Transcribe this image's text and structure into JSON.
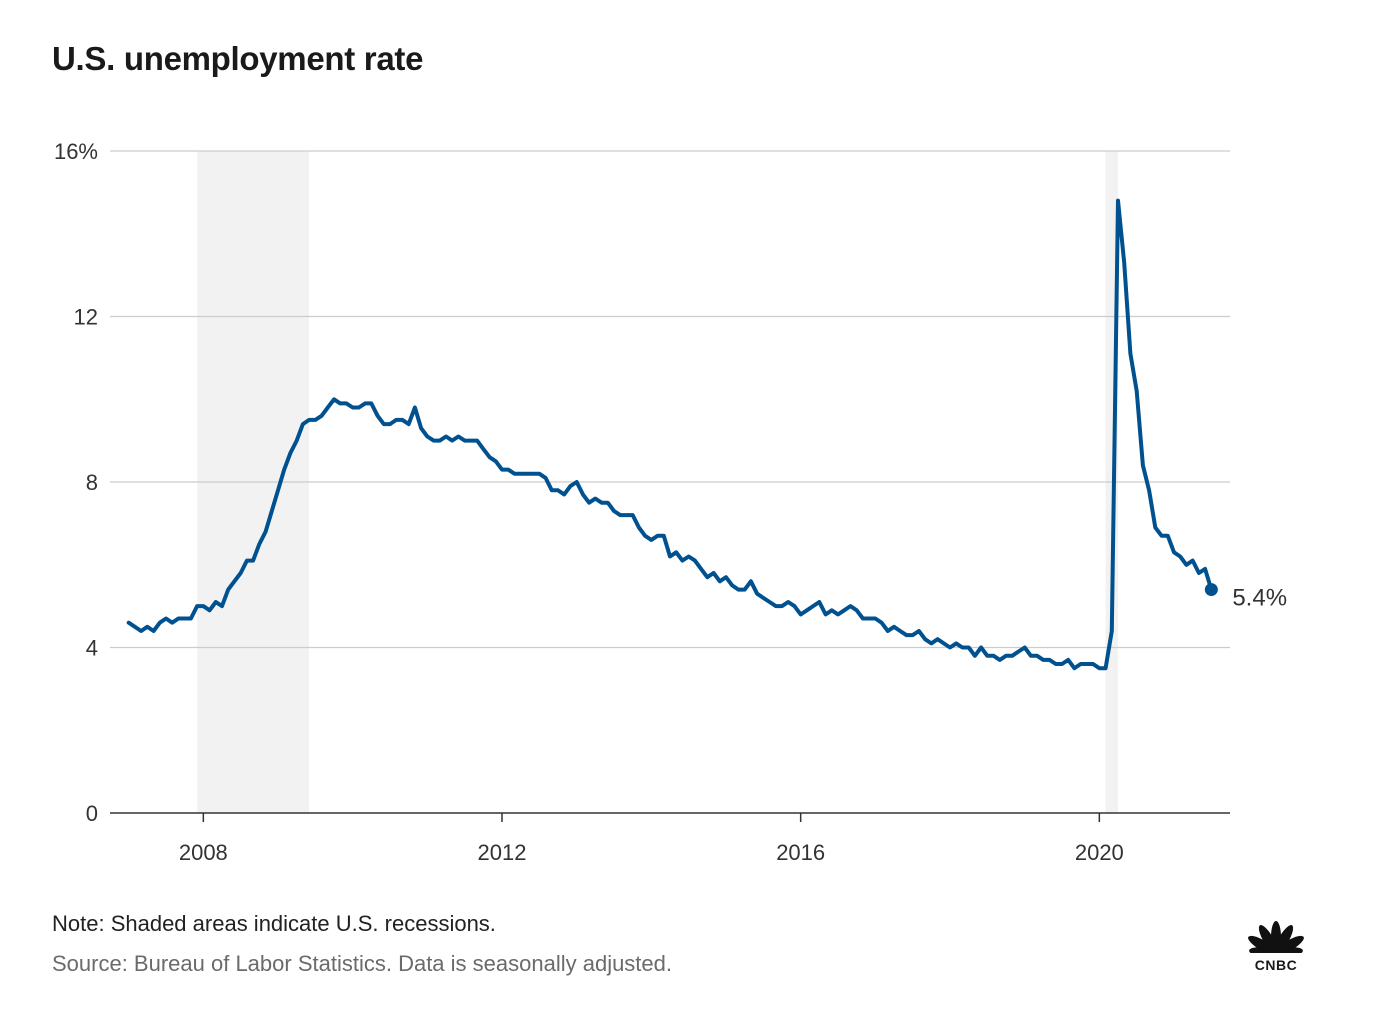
{
  "title": "U.S. unemployment rate",
  "note": "Note: Shaded areas indicate U.S. recessions.",
  "source": "Source: Bureau of Labor Statistics. Data is seasonally adjusted.",
  "brand": "CNBC",
  "colors": {
    "line": "#00518f",
    "recession": "#f2f2f2",
    "grid": "#cccccc",
    "axis": "#333333"
  },
  "chart_data": {
    "type": "line",
    "title": "U.S. unemployment rate",
    "xlabel": "",
    "ylabel": "",
    "xlim": [
      2006.75,
      2021.75
    ],
    "ylim": [
      0,
      16
    ],
    "grid": true,
    "y_ticks": [
      {
        "value": 0,
        "label": "0"
      },
      {
        "value": 4,
        "label": "4"
      },
      {
        "value": 8,
        "label": "8"
      },
      {
        "value": 12,
        "label": "12"
      },
      {
        "value": 16,
        "label": "16%"
      }
    ],
    "x_ticks": [
      {
        "value": 2008,
        "label": "2008"
      },
      {
        "value": 2012,
        "label": "2012"
      },
      {
        "value": 2016,
        "label": "2016"
      },
      {
        "value": 2020,
        "label": "2020"
      }
    ],
    "recessions": [
      {
        "start": "2007-12",
        "end": "2009-06"
      },
      {
        "start": "2020-02",
        "end": "2020-04"
      }
    ],
    "end_label": "5.4%",
    "series": [
      {
        "values": [
          [
            "2007-01",
            4.6
          ],
          [
            "2007-02",
            4.5
          ],
          [
            "2007-03",
            4.4
          ],
          [
            "2007-04",
            4.5
          ],
          [
            "2007-05",
            4.4
          ],
          [
            "2007-06",
            4.6
          ],
          [
            "2007-07",
            4.7
          ],
          [
            "2007-08",
            4.6
          ],
          [
            "2007-09",
            4.7
          ],
          [
            "2007-10",
            4.7
          ],
          [
            "2007-11",
            4.7
          ],
          [
            "2007-12",
            5.0
          ],
          [
            "2008-01",
            5.0
          ],
          [
            "2008-02",
            4.9
          ],
          [
            "2008-03",
            5.1
          ],
          [
            "2008-04",
            5.0
          ],
          [
            "2008-05",
            5.4
          ],
          [
            "2008-06",
            5.6
          ],
          [
            "2008-07",
            5.8
          ],
          [
            "2008-08",
            6.1
          ],
          [
            "2008-09",
            6.1
          ],
          [
            "2008-10",
            6.5
          ],
          [
            "2008-11",
            6.8
          ],
          [
            "2008-12",
            7.3
          ],
          [
            "2009-01",
            7.8
          ],
          [
            "2009-02",
            8.3
          ],
          [
            "2009-03",
            8.7
          ],
          [
            "2009-04",
            9.0
          ],
          [
            "2009-05",
            9.4
          ],
          [
            "2009-06",
            9.5
          ],
          [
            "2009-07",
            9.5
          ],
          [
            "2009-08",
            9.6
          ],
          [
            "2009-09",
            9.8
          ],
          [
            "2009-10",
            10.0
          ],
          [
            "2009-11",
            9.9
          ],
          [
            "2009-12",
            9.9
          ],
          [
            "2010-01",
            9.8
          ],
          [
            "2010-02",
            9.8
          ],
          [
            "2010-03",
            9.9
          ],
          [
            "2010-04",
            9.9
          ],
          [
            "2010-05",
            9.6
          ],
          [
            "2010-06",
            9.4
          ],
          [
            "2010-07",
            9.4
          ],
          [
            "2010-08",
            9.5
          ],
          [
            "2010-09",
            9.5
          ],
          [
            "2010-10",
            9.4
          ],
          [
            "2010-11",
            9.8
          ],
          [
            "2010-12",
            9.3
          ],
          [
            "2011-01",
            9.1
          ],
          [
            "2011-02",
            9.0
          ],
          [
            "2011-03",
            9.0
          ],
          [
            "2011-04",
            9.1
          ],
          [
            "2011-05",
            9.0
          ],
          [
            "2011-06",
            9.1
          ],
          [
            "2011-07",
            9.0
          ],
          [
            "2011-08",
            9.0
          ],
          [
            "2011-09",
            9.0
          ],
          [
            "2011-10",
            8.8
          ],
          [
            "2011-11",
            8.6
          ],
          [
            "2011-12",
            8.5
          ],
          [
            "2012-01",
            8.3
          ],
          [
            "2012-02",
            8.3
          ],
          [
            "2012-03",
            8.2
          ],
          [
            "2012-04",
            8.2
          ],
          [
            "2012-05",
            8.2
          ],
          [
            "2012-06",
            8.2
          ],
          [
            "2012-07",
            8.2
          ],
          [
            "2012-08",
            8.1
          ],
          [
            "2012-09",
            7.8
          ],
          [
            "2012-10",
            7.8
          ],
          [
            "2012-11",
            7.7
          ],
          [
            "2012-12",
            7.9
          ],
          [
            "2013-01",
            8.0
          ],
          [
            "2013-02",
            7.7
          ],
          [
            "2013-03",
            7.5
          ],
          [
            "2013-04",
            7.6
          ],
          [
            "2013-05",
            7.5
          ],
          [
            "2013-06",
            7.5
          ],
          [
            "2013-07",
            7.3
          ],
          [
            "2013-08",
            7.2
          ],
          [
            "2013-09",
            7.2
          ],
          [
            "2013-10",
            7.2
          ],
          [
            "2013-11",
            6.9
          ],
          [
            "2013-12",
            6.7
          ],
          [
            "2014-01",
            6.6
          ],
          [
            "2014-02",
            6.7
          ],
          [
            "2014-03",
            6.7
          ],
          [
            "2014-04",
            6.2
          ],
          [
            "2014-05",
            6.3
          ],
          [
            "2014-06",
            6.1
          ],
          [
            "2014-07",
            6.2
          ],
          [
            "2014-08",
            6.1
          ],
          [
            "2014-09",
            5.9
          ],
          [
            "2014-10",
            5.7
          ],
          [
            "2014-11",
            5.8
          ],
          [
            "2014-12",
            5.6
          ],
          [
            "2015-01",
            5.7
          ],
          [
            "2015-02",
            5.5
          ],
          [
            "2015-03",
            5.4
          ],
          [
            "2015-04",
            5.4
          ],
          [
            "2015-05",
            5.6
          ],
          [
            "2015-06",
            5.3
          ],
          [
            "2015-07",
            5.2
          ],
          [
            "2015-08",
            5.1
          ],
          [
            "2015-09",
            5.0
          ],
          [
            "2015-10",
            5.0
          ],
          [
            "2015-11",
            5.1
          ],
          [
            "2015-12",
            5.0
          ],
          [
            "2016-01",
            4.8
          ],
          [
            "2016-02",
            4.9
          ],
          [
            "2016-03",
            5.0
          ],
          [
            "2016-04",
            5.1
          ],
          [
            "2016-05",
            4.8
          ],
          [
            "2016-06",
            4.9
          ],
          [
            "2016-07",
            4.8
          ],
          [
            "2016-08",
            4.9
          ],
          [
            "2016-09",
            5.0
          ],
          [
            "2016-10",
            4.9
          ],
          [
            "2016-11",
            4.7
          ],
          [
            "2016-12",
            4.7
          ],
          [
            "2017-01",
            4.7
          ],
          [
            "2017-02",
            4.6
          ],
          [
            "2017-03",
            4.4
          ],
          [
            "2017-04",
            4.5
          ],
          [
            "2017-05",
            4.4
          ],
          [
            "2017-06",
            4.3
          ],
          [
            "2017-07",
            4.3
          ],
          [
            "2017-08",
            4.4
          ],
          [
            "2017-09",
            4.2
          ],
          [
            "2017-10",
            4.1
          ],
          [
            "2017-11",
            4.2
          ],
          [
            "2017-12",
            4.1
          ],
          [
            "2018-01",
            4.0
          ],
          [
            "2018-02",
            4.1
          ],
          [
            "2018-03",
            4.0
          ],
          [
            "2018-04",
            4.0
          ],
          [
            "2018-05",
            3.8
          ],
          [
            "2018-06",
            4.0
          ],
          [
            "2018-07",
            3.8
          ],
          [
            "2018-08",
            3.8
          ],
          [
            "2018-09",
            3.7
          ],
          [
            "2018-10",
            3.8
          ],
          [
            "2018-11",
            3.8
          ],
          [
            "2018-12",
            3.9
          ],
          [
            "2019-01",
            4.0
          ],
          [
            "2019-02",
            3.8
          ],
          [
            "2019-03",
            3.8
          ],
          [
            "2019-04",
            3.7
          ],
          [
            "2019-05",
            3.7
          ],
          [
            "2019-06",
            3.6
          ],
          [
            "2019-07",
            3.6
          ],
          [
            "2019-08",
            3.7
          ],
          [
            "2019-09",
            3.5
          ],
          [
            "2019-10",
            3.6
          ],
          [
            "2019-11",
            3.6
          ],
          [
            "2019-12",
            3.6
          ],
          [
            "2020-01",
            3.5
          ],
          [
            "2020-02",
            3.5
          ],
          [
            "2020-03",
            4.4
          ],
          [
            "2020-04",
            14.8
          ],
          [
            "2020-05",
            13.3
          ],
          [
            "2020-06",
            11.1
          ],
          [
            "2020-07",
            10.2
          ],
          [
            "2020-08",
            8.4
          ],
          [
            "2020-09",
            7.8
          ],
          [
            "2020-10",
            6.9
          ],
          [
            "2020-11",
            6.7
          ],
          [
            "2020-12",
            6.7
          ],
          [
            "2021-01",
            6.3
          ],
          [
            "2021-02",
            6.2
          ],
          [
            "2021-03",
            6.0
          ],
          [
            "2021-04",
            6.1
          ],
          [
            "2021-05",
            5.8
          ],
          [
            "2021-06",
            5.9
          ],
          [
            "2021-07",
            5.4
          ]
        ]
      }
    ]
  }
}
